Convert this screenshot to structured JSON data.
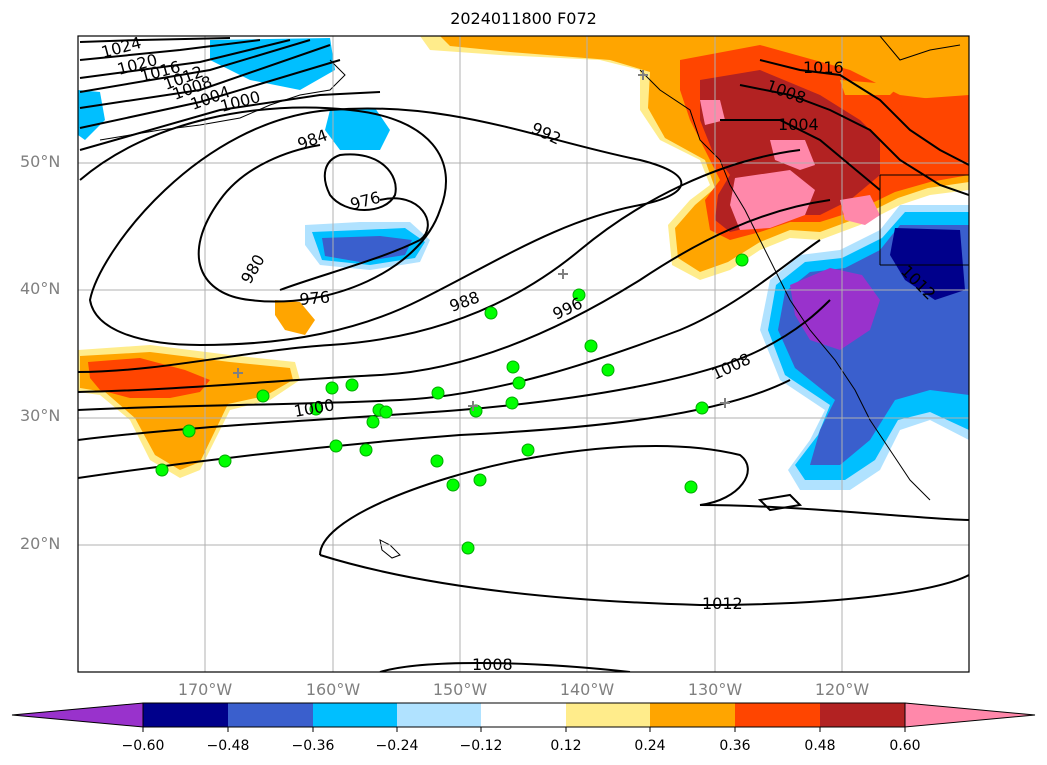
{
  "title": "2024011800 F072",
  "lat_labels": [
    "50°N",
    "40°N",
    "30°N",
    "20°N"
  ],
  "lon_labels": [
    "170°W",
    "160°W",
    "150°W",
    "140°W",
    "130°W",
    "120°W"
  ],
  "contour_labels": [
    "1024",
    "1020",
    "1016",
    "1012",
    "1008",
    "1004",
    "1000",
    "984",
    "976",
    "980",
    "976",
    "992",
    "988",
    "996",
    "1000",
    "1008",
    "1012",
    "1008",
    "1016",
    "1008",
    "1004",
    "1012"
  ],
  "colorbar": {
    "ticks": [
      "−0.60",
      "−0.48",
      "−0.36",
      "−0.24",
      "−0.12",
      "0.12",
      "0.24",
      "0.36",
      "0.48",
      "0.60"
    ],
    "colors": [
      "#9932cc",
      "#00008b",
      "#3a5fcd",
      "#00bfff",
      "#b0e2ff",
      "#ffffff",
      "#ffec8b",
      "#ffa500",
      "#ff4500",
      "#b22222",
      "#ff88aa"
    ]
  }
}
